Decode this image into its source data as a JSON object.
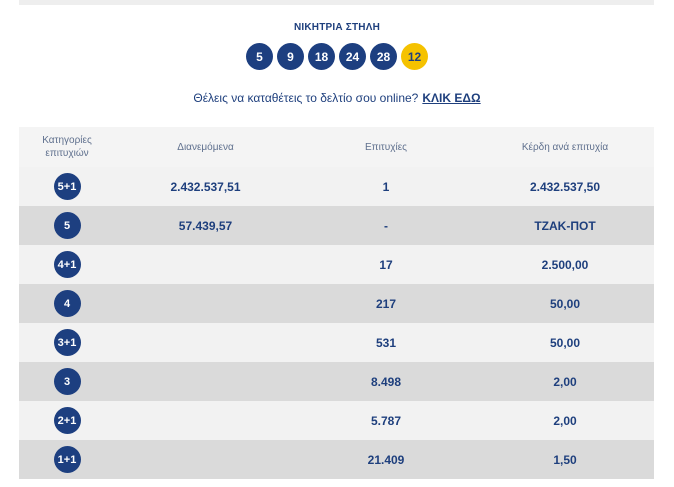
{
  "heading": "ΝΙΚΗΤΡΙΑ ΣΤΗΛΗ",
  "winning_numbers": [
    "5",
    "9",
    "18",
    "24",
    "28"
  ],
  "bonus_number": "12",
  "cta": {
    "text": "Θέλεις να καταθέτεις το δελτίο σου online?",
    "link": "ΚΛΙΚ ΕΔΩ"
  },
  "table": {
    "headers": [
      "Κατηγορίες επιτυχιών",
      "Διανεμόμενα",
      "Επιτυχίες",
      "Κέρδη ανά επιτυχία"
    ],
    "rows": [
      {
        "category": "5+1",
        "distributed": "2.432.537,51",
        "winners": "1",
        "prize": "2.432.537,50"
      },
      {
        "category": "5",
        "distributed": "57.439,57",
        "winners": "-",
        "prize": "ΤΖΑΚ-ΠΟΤ"
      },
      {
        "category": "4+1",
        "distributed": "",
        "winners": "17",
        "prize": "2.500,00"
      },
      {
        "category": "4",
        "distributed": "",
        "winners": "217",
        "prize": "50,00"
      },
      {
        "category": "3+1",
        "distributed": "",
        "winners": "531",
        "prize": "50,00"
      },
      {
        "category": "3",
        "distributed": "",
        "winners": "8.498",
        "prize": "2,00"
      },
      {
        "category": "2+1",
        "distributed": "",
        "winners": "5.787",
        "prize": "2,00"
      },
      {
        "category": "1+1",
        "distributed": "",
        "winners": "21.409",
        "prize": "1,50"
      }
    ]
  },
  "colors": {
    "navy": "#1d3f80",
    "bonus": "#f5c200",
    "row_light": "#f2f2f2",
    "row_dark": "#dadada"
  }
}
